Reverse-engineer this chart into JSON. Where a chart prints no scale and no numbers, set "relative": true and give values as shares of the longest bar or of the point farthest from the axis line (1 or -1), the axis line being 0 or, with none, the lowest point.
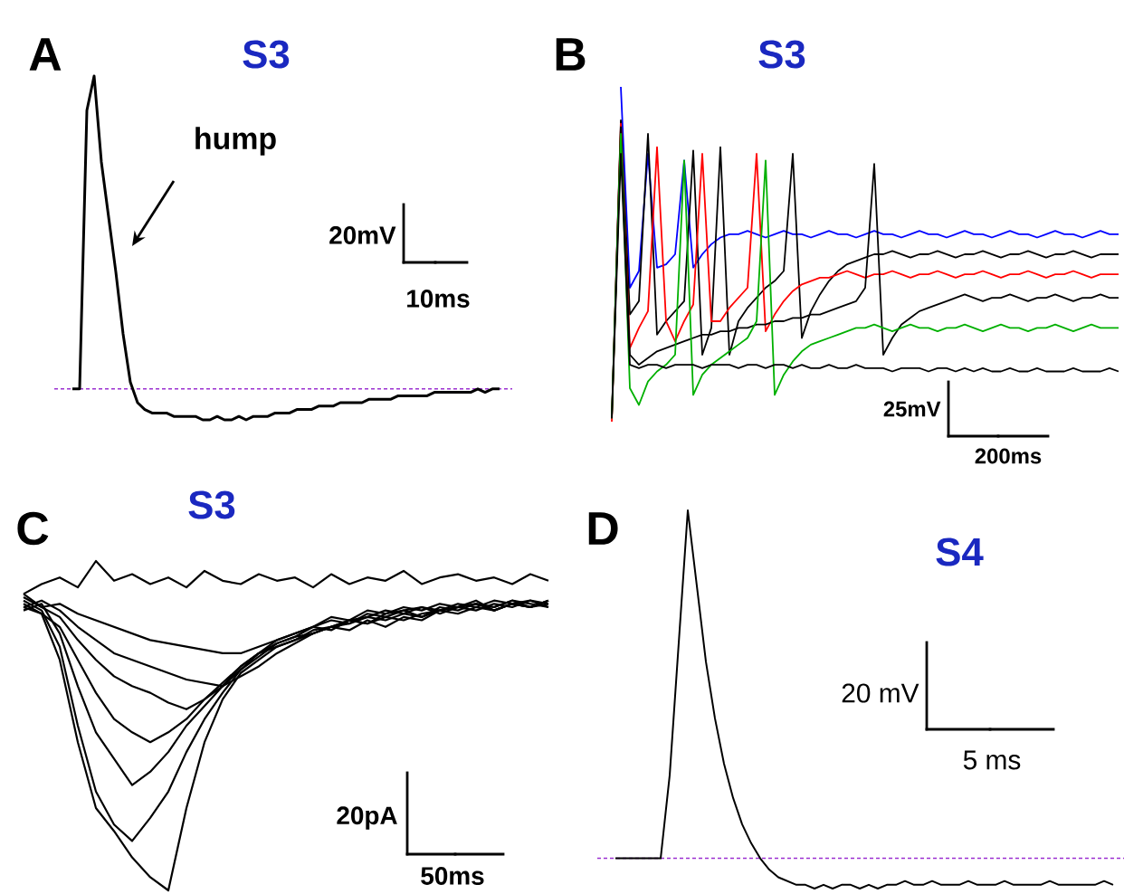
{
  "chart_data": [
    {
      "type": "line",
      "title": "S3",
      "relative": true,
      "categories": [
        null,
        null,
        null,
        null,
        null,
        null,
        null,
        null,
        null,
        null,
        null,
        null,
        null,
        null,
        null,
        null,
        null,
        null,
        null,
        null,
        null,
        null,
        null,
        null,
        null,
        null,
        null,
        null,
        null,
        null,
        null,
        null,
        null,
        null,
        null,
        null,
        null,
        null,
        null,
        null,
        null,
        null,
        null,
        null,
        null,
        null,
        null,
        null,
        null,
        null,
        null,
        null,
        null,
        null,
        null,
        null,
        null,
        null,
        null,
        null
      ],
      "series": [
        {
          "color": "#000000",
          "values": [
            0.09,
            0.09,
            0.9,
            1,
            0.75,
            0.59,
            0.43,
            0.25,
            0.11,
            0.05,
            0.03,
            0.02,
            0.02,
            0.02,
            0.01,
            0.01,
            0.01,
            0.01,
            0,
            0,
            0.01,
            0,
            0,
            0.01,
            0,
            0.01,
            0.01,
            0.01,
            0.02,
            0.02,
            0.02,
            0.03,
            0.03,
            0.03,
            0.04,
            0.04,
            0.04,
            0.05,
            0.05,
            0.05,
            0.05,
            0.06,
            0.06,
            0.06,
            0.06,
            0.07,
            0.07,
            0.07,
            0.07,
            0.07,
            0.08,
            0.08,
            0.08,
            0.08,
            0.08,
            0.08,
            0.09,
            0.08,
            0.09,
            0.09
          ]
        }
      ],
      "ref_lines": [
        {
          "axis": "y",
          "value": 0.09,
          "color": "#9b30d0",
          "line_style": "dashed"
        }
      ],
      "annotations": [
        "A",
        "20mV",
        "10ms",
        "hump"
      ]
    },
    {
      "type": "line",
      "title": "S3",
      "relative": true,
      "categories": [
        null,
        null,
        null,
        null,
        null,
        null,
        null,
        null,
        null,
        null,
        null,
        null,
        null,
        null,
        null,
        null,
        null,
        null,
        null,
        null,
        null,
        null,
        null,
        null,
        null,
        null,
        null,
        null,
        null,
        null,
        null,
        null,
        null,
        null,
        null,
        null,
        null,
        null,
        null,
        null,
        null,
        null,
        null,
        null,
        null,
        null,
        null,
        null,
        null,
        null,
        null,
        null,
        null,
        null,
        null,
        null,
        null
      ],
      "series": [
        {
          "color": "#0000ff",
          "values": [
            null,
            1,
            0.4,
            0.45,
            0.8,
            0.46,
            0.47,
            0.5,
            0.78,
            0.46,
            0.5,
            0.53,
            0.55,
            0.56,
            0.56,
            0.57,
            0.56,
            0.55,
            0.56,
            0.57,
            0.56,
            0.56,
            0.55,
            0.56,
            0.57,
            0.56,
            0.56,
            0.55,
            0.56,
            0.57,
            0.56,
            0.56,
            0.55,
            0.56,
            0.57,
            0.56,
            0.56,
            0.55,
            0.56,
            0.57,
            0.56,
            0.56,
            0.55,
            0.56,
            0.57,
            0.56,
            0.56,
            0.55,
            0.56,
            0.57,
            0.56,
            0.56,
            0.55,
            0.56,
            0.57,
            0.56,
            0.56
          ]
        },
        {
          "color": "#000000",
          "values": [
            0.01,
            0.9,
            0.32,
            0.36,
            0.86,
            0.26,
            0.3,
            0.33,
            0.36,
            0.81,
            0.2,
            0.28,
            0.82,
            0.2,
            0.3,
            0.34,
            0.37,
            0.4,
            0.42,
            0.45,
            0.8,
            0.25,
            0.33,
            0.38,
            0.42,
            0.45,
            0.47,
            0.48,
            0.49,
            0.5,
            0.5,
            0.51,
            0.5,
            0.49,
            0.5,
            0.5,
            0.51,
            0.5,
            0.49,
            0.5,
            0.5,
            0.51,
            0.5,
            0.49,
            0.5,
            0.5,
            0.51,
            0.5,
            0.49,
            0.5,
            0.5,
            0.51,
            0.5,
            0.49,
            0.5,
            0.5,
            0.5
          ]
        },
        {
          "color": "#ff0000",
          "values": [
            0,
            0.89,
            0.22,
            0.28,
            0.33,
            0.82,
            0.3,
            0.24,
            0.3,
            0.35,
            0.8,
            0.3,
            0.3,
            0.34,
            0.37,
            0.4,
            0.8,
            0.27,
            0.32,
            0.36,
            0.39,
            0.41,
            0.42,
            0.43,
            0.43,
            0.44,
            0.45,
            0.44,
            0.43,
            0.44,
            0.44,
            0.45,
            0.44,
            0.43,
            0.44,
            0.44,
            0.45,
            0.44,
            0.43,
            0.44,
            0.44,
            0.45,
            0.44,
            0.43,
            0.44,
            0.44,
            0.45,
            0.44,
            0.43,
            0.44,
            0.44,
            0.45,
            0.44,
            0.43,
            0.44,
            0.44,
            0.44
          ]
        },
        {
          "color": "#000000",
          "values": [
            0.01,
            0.88,
            0.2,
            0.17,
            0.19,
            0.21,
            0.22,
            0.23,
            0.24,
            0.25,
            0.26,
            0.26,
            0.27,
            0.27,
            0.28,
            0.28,
            0.29,
            0.29,
            0.3,
            0.3,
            0.31,
            0.31,
            0.32,
            0.32,
            0.33,
            0.34,
            0.35,
            0.36,
            0.4,
            0.77,
            0.2,
            0.25,
            0.29,
            0.31,
            0.33,
            0.34,
            0.35,
            0.36,
            0.37,
            0.38,
            0.37,
            0.36,
            0.37,
            0.37,
            0.38,
            0.37,
            0.36,
            0.37,
            0.37,
            0.38,
            0.37,
            0.36,
            0.37,
            0.37,
            0.38,
            0.37,
            0.37
          ]
        },
        {
          "color": "#00b000",
          "values": [
            0.01,
            0.86,
            0.1,
            0.05,
            0.12,
            0.15,
            0.17,
            0.2,
            0.78,
            0.08,
            0.14,
            0.17,
            0.19,
            0.21,
            0.23,
            0.25,
            0.3,
            0.78,
            0.08,
            0.14,
            0.18,
            0.21,
            0.23,
            0.24,
            0.25,
            0.26,
            0.27,
            0.28,
            0.28,
            0.29,
            0.28,
            0.27,
            0.28,
            0.29,
            0.28,
            0.28,
            0.27,
            0.28,
            0.28,
            0.29,
            0.28,
            0.27,
            0.28,
            0.29,
            0.28,
            0.28,
            0.27,
            0.28,
            0.28,
            0.29,
            0.28,
            0.27,
            0.28,
            0.29,
            0.28,
            0.28,
            0.28
          ]
        },
        {
          "color": "#000000",
          "values": [
            0.01,
            0.8,
            0.17,
            0.16,
            0.17,
            0.17,
            0.16,
            0.17,
            0.17,
            0.17,
            0.16,
            0.17,
            0.17,
            0.17,
            0.16,
            0.17,
            0.17,
            0.16,
            0.17,
            0.17,
            0.16,
            0.17,
            0.16,
            0.16,
            0.17,
            0.16,
            0.16,
            0.17,
            0.16,
            0.16,
            0.16,
            0.15,
            0.16,
            0.16,
            0.16,
            0.15,
            0.16,
            0.16,
            0.15,
            0.16,
            0.15,
            0.16,
            0.15,
            0.15,
            0.16,
            0.15,
            0.15,
            0.16,
            0.15,
            0.15,
            0.15,
            0.16,
            0.15,
            0.15,
            0.15,
            0.16,
            0.15
          ]
        }
      ],
      "annotations": [
        "B",
        "25mV",
        "200ms"
      ]
    },
    {
      "type": "line",
      "title": "S3",
      "relative": true,
      "categories": [
        null,
        null,
        null,
        null,
        null,
        null,
        null,
        null,
        null,
        null,
        null,
        null,
        null,
        null,
        null,
        null,
        null,
        null,
        null,
        null,
        null,
        null,
        null,
        null,
        null,
        null,
        null,
        null,
        null,
        null
      ],
      "series": [
        {
          "color": "#000000",
          "values": [
            0.86,
            0.84,
            0.7,
            0.45,
            0.25,
            0.18,
            0.1,
            0.04,
            0,
            0.25,
            0.45,
            0.58,
            0.66,
            0.7,
            0.74,
            0.76,
            0.78,
            0.8,
            0.79,
            0.82,
            0.8,
            0.83,
            0.82,
            0.85,
            0.84,
            0.86,
            0.85,
            0.87,
            0.86,
            0.88
          ]
        },
        {
          "color": "#000000",
          "values": [
            0.88,
            0.85,
            0.74,
            0.5,
            0.3,
            0.2,
            0.15,
            0.22,
            0.3,
            0.42,
            0.52,
            0.6,
            0.67,
            0.72,
            0.75,
            0.77,
            0.78,
            0.8,
            0.82,
            0.81,
            0.83,
            0.82,
            0.84,
            0.85,
            0.86,
            0.85,
            0.87,
            0.86,
            0.88,
            0.87
          ]
        },
        {
          "color": "#000000",
          "values": [
            0.85,
            0.87,
            0.78,
            0.62,
            0.48,
            0.4,
            0.32,
            0.36,
            0.42,
            0.5,
            0.56,
            0.62,
            0.68,
            0.72,
            0.74,
            0.76,
            0.79,
            0.8,
            0.81,
            0.83,
            0.82,
            0.84,
            0.83,
            0.85,
            0.86,
            0.87,
            0.86,
            0.88,
            0.87,
            0.86
          ]
        },
        {
          "color": "#000000",
          "values": [
            0.87,
            0.84,
            0.8,
            0.7,
            0.6,
            0.52,
            0.48,
            0.45,
            0.48,
            0.52,
            0.58,
            0.63,
            0.68,
            0.72,
            0.76,
            0.78,
            0.8,
            0.79,
            0.82,
            0.83,
            0.85,
            0.84,
            0.86,
            0.85,
            0.87,
            0.86,
            0.88,
            0.87,
            0.86,
            0.88
          ]
        },
        {
          "color": "#000000",
          "values": [
            0.9,
            0.86,
            0.83,
            0.76,
            0.7,
            0.65,
            0.62,
            0.6,
            0.57,
            0.55,
            0.58,
            0.62,
            0.67,
            0.71,
            0.75,
            0.77,
            0.8,
            0.82,
            0.81,
            0.84,
            0.83,
            0.85,
            0.86,
            0.84,
            0.86,
            0.87,
            0.85,
            0.87,
            0.88,
            0.86
          ]
        },
        {
          "color": "#000000",
          "values": [
            0.86,
            0.88,
            0.85,
            0.8,
            0.76,
            0.72,
            0.7,
            0.68,
            0.66,
            0.64,
            0.63,
            0.62,
            0.65,
            0.68,
            0.72,
            0.75,
            0.78,
            0.8,
            0.82,
            0.81,
            0.84,
            0.85,
            0.83,
            0.86,
            0.85,
            0.87,
            0.86,
            0.88,
            0.86,
            0.87
          ]
        },
        {
          "color": "#000000",
          "values": [
            0.89,
            0.86,
            0.87,
            0.84,
            0.82,
            0.8,
            0.78,
            0.76,
            0.75,
            0.74,
            0.73,
            0.72,
            0.72,
            0.74,
            0.76,
            0.78,
            0.8,
            0.83,
            0.82,
            0.85,
            0.84,
            0.86,
            0.85,
            0.87,
            0.86,
            0.88,
            0.85,
            0.87,
            0.86,
            0.88
          ]
        },
        {
          "color": "#000000",
          "values": [
            0.9,
            0.93,
            0.95,
            0.92,
            1,
            0.94,
            0.96,
            0.93,
            0.95,
            0.92,
            0.97,
            0.94,
            0.93,
            0.96,
            0.94,
            0.95,
            0.92,
            0.96,
            0.93,
            0.95,
            0.94,
            0.97,
            0.93,
            0.95,
            0.96,
            0.94,
            0.95,
            0.93,
            0.96,
            0.94
          ]
        }
      ],
      "annotations": [
        "C",
        "20pA",
        "50ms"
      ]
    },
    {
      "type": "line",
      "title": "S4",
      "relative": true,
      "categories": [
        null,
        null,
        null,
        null,
        null,
        null,
        null,
        null,
        null,
        null,
        null,
        null,
        null,
        null,
        null,
        null,
        null,
        null,
        null,
        null,
        null,
        null,
        null,
        null,
        null,
        null,
        null,
        null,
        null,
        null,
        null,
        null,
        null,
        null,
        null,
        null,
        null,
        null,
        null,
        null,
        null,
        null,
        null,
        null,
        null,
        null,
        null,
        null,
        null,
        null,
        null,
        null,
        null,
        null,
        null,
        null
      ],
      "series": [
        {
          "color": "#000000",
          "values": [
            0.08,
            0.08,
            0.08,
            0.08,
            0.08,
            0.08,
            0.3,
            0.65,
            1,
            0.8,
            0.6,
            0.45,
            0.33,
            0.24,
            0.17,
            0.12,
            0.08,
            0.05,
            0.03,
            0.02,
            0.01,
            0.01,
            0,
            0.01,
            0,
            0.01,
            0.01,
            0,
            0.01,
            0,
            0.01,
            0.01,
            0.02,
            0.01,
            0.01,
            0.02,
            0.01,
            0.01,
            0.01,
            0.02,
            0.01,
            0.01,
            0.01,
            0.02,
            0.01,
            0.01,
            0.01,
            0.01,
            0.02,
            0.01,
            0.01,
            0.01,
            0.01,
            0.01,
            0.02,
            0.01
          ]
        }
      ],
      "ref_lines": [
        {
          "axis": "y",
          "value": 0.08,
          "color": "#9b30d0",
          "line_style": "dashed"
        }
      ],
      "annotations": [
        "D",
        "20 mV",
        "5 ms"
      ]
    }
  ]
}
